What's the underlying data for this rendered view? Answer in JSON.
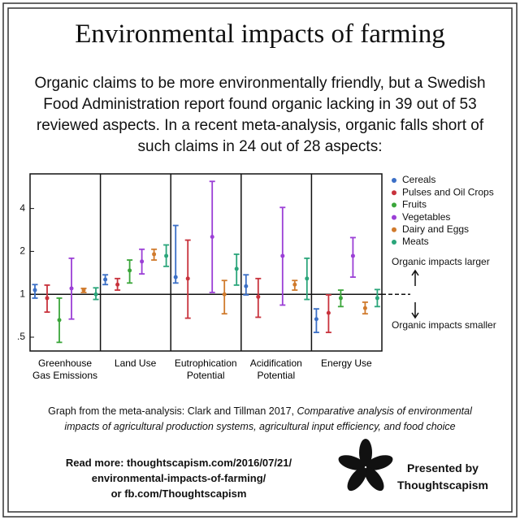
{
  "title": "Environmental impacts of farming",
  "subtitle": "Organic claims to be more environmentally friendly, but a Swedish Food Administration report found organic lacking in 39 out of 53 reviewed aspects. In a recent meta-analysis, organic falls short of such claims in 24 out of 28 aspects:",
  "chart_data": {
    "type": "errorbar",
    "yscale": "log",
    "categories": [
      "Greenhouse Gas Emissions",
      "Land Use",
      "Eutrophication Potential",
      "Acidification Potential",
      "Energy Use"
    ],
    "ylim": [
      0.4,
      7
    ],
    "yticks": [
      {
        "value": 0.5,
        "label": ".5"
      },
      1,
      2,
      4
    ],
    "reference_line": 1,
    "annotations": [
      "Organic impacts larger",
      "Organic impacts smaller"
    ],
    "series": [
      {
        "name": "Cereals",
        "color": "#3b6fc6",
        "values": [
          1.07,
          1.27,
          1.32,
          1.14,
          0.67
        ],
        "lower": [
          0.94,
          1.17,
          1.2,
          0.99,
          0.54
        ],
        "upper": [
          1.17,
          1.37,
          3.04,
          1.37,
          0.79
        ]
      },
      {
        "name": "Pulses and Oil Crops",
        "color": "#c8323c",
        "values": [
          0.94,
          1.17,
          1.29,
          0.96,
          0.74
        ],
        "lower": [
          0.75,
          1.07,
          0.68,
          0.69,
          0.54
        ],
        "upper": [
          1.16,
          1.29,
          2.4,
          1.29,
          0.99
        ]
      },
      {
        "name": "Fruits",
        "color": "#3aa63a",
        "values": [
          0.66,
          1.47,
          null,
          null,
          0.94
        ],
        "lower": [
          0.46,
          1.2,
          null,
          null,
          0.82
        ],
        "upper": [
          0.94,
          1.74,
          null,
          null,
          1.07
        ]
      },
      {
        "name": "Vegetables",
        "color": "#9b3fd6",
        "values": [
          1.1,
          1.7,
          2.53,
          1.86,
          1.86
        ],
        "lower": [
          0.67,
          1.39,
          1.03,
          0.84,
          1.32
        ],
        "upper": [
          1.79,
          2.07,
          6.2,
          4.07,
          2.5
        ]
      },
      {
        "name": "Dairy and Eggs",
        "color": "#d07a2c",
        "values": [
          1.07,
          1.91,
          1.0,
          1.17,
          0.8
        ],
        "lower": [
          1.03,
          1.74,
          0.73,
          1.07,
          0.73
        ],
        "upper": [
          1.1,
          2.07,
          1.25,
          1.25,
          0.88
        ]
      },
      {
        "name": "Meats",
        "color": "#2aa57a",
        "values": [
          1.0,
          1.86,
          1.51,
          1.29,
          0.94
        ],
        "lower": [
          0.92,
          1.57,
          1.16,
          0.92,
          0.82
        ],
        "upper": [
          1.11,
          2.22,
          1.91,
          1.79,
          1.08
        ]
      }
    ]
  },
  "citation": {
    "plain": "Graph from the meta-analysis: Clark and Tillman 2017, ",
    "italic": "Comparative analysis of environmental impacts of agricultural production systems, agricultural input efficiency, and food choice"
  },
  "read_more": [
    "Read more: thoughtscapism.com/2016/07/21/",
    "environmental-impacts-of-farming/",
    "or fb.com/Thoughtscapism"
  ],
  "presented_by": [
    "Presented by",
    "Thoughtscapism"
  ]
}
